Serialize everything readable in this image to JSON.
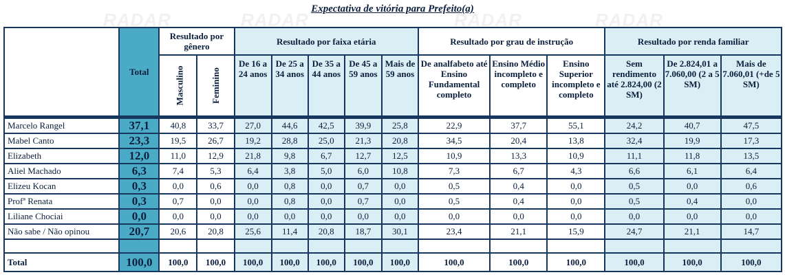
{
  "title": "Expectativa de vitória para Prefeito(a)",
  "watermark": "RADAR",
  "header": {
    "total": "Total",
    "groups": {
      "genero": "Resultado por gênero",
      "faixa": "Resultado por faixa etária",
      "instrucao": "Resultado por grau de instrução",
      "renda": "Resultado por renda familiar"
    },
    "columns": [
      "Masculino",
      "Feminino",
      "De 16 a 24 anos",
      "De 25 a 34 anos",
      "De 35 a 44 anos",
      "De 45 a 59 anos",
      "Mais de 59 anos",
      "De analfabeto até Ensino Fundamental completo",
      "Ensino Médio incompleto e completo",
      "Ensino Superior incompleto e completo",
      "Sem rendimento até 2.824,00 (2 SM)",
      "De 2.824,01 a 7.060,00 (2 a 5 SM)",
      "Mais de 7.060,01 (+de 5 SM)"
    ]
  },
  "rows": [
    {
      "name": "Marcelo Rangel",
      "total": "37,1",
      "values": [
        "40,8",
        "33,7",
        "27,0",
        "44,6",
        "42,5",
        "39,9",
        "25,8",
        "22,9",
        "37,7",
        "55,1",
        "24,2",
        "40,7",
        "47,5"
      ]
    },
    {
      "name": "Mabel Canto",
      "total": "23,3",
      "values": [
        "19,5",
        "26,7",
        "19,2",
        "28,8",
        "25,0",
        "21,3",
        "20,8",
        "34,5",
        "20,4",
        "13,8",
        "32,4",
        "19,9",
        "17,3"
      ]
    },
    {
      "name": "Elizabeth",
      "total": "12,0",
      "values": [
        "11,0",
        "12,9",
        "21,8",
        "9,8",
        "6,7",
        "12,7",
        "12,5",
        "10,9",
        "13,3",
        "10,9",
        "11,1",
        "11,8",
        "13,5"
      ]
    },
    {
      "name": "Aliel Machado",
      "total": "6,3",
      "values": [
        "7,4",
        "5,3",
        "6,4",
        "3,8",
        "5,0",
        "6,0",
        "10,8",
        "7,3",
        "6,7",
        "4,3",
        "6,6",
        "6,1",
        "6,4"
      ]
    },
    {
      "name": "Elizeu Kocan",
      "total": "0,3",
      "values": [
        "0,0",
        "0,6",
        "0,0",
        "0,8",
        "0,0",
        "0,7",
        "0,0",
        "0,5",
        "0,4",
        "0,0",
        "0,5",
        "0,0",
        "0,6"
      ]
    },
    {
      "name": "Profª Renata",
      "total": "0,3",
      "values": [
        "0,7",
        "0,0",
        "0,0",
        "0,8",
        "0,0",
        "0,7",
        "0,0",
        "0,5",
        "0,4",
        "0,0",
        "0,5",
        "0,4",
        "0,0"
      ]
    },
    {
      "name": "Liliane Chociai",
      "total": "0,0",
      "values": [
        "0,0",
        "0,0",
        "0,0",
        "0,0",
        "0,0",
        "0,0",
        "0,0",
        "0,0",
        "0,0",
        "0,0",
        "0,0",
        "0,0",
        "0,0"
      ]
    },
    {
      "name": "Não sabe / Não opinou",
      "total": "20,7",
      "values": [
        "20,6",
        "20,8",
        "25,6",
        "11,4",
        "20,8",
        "18,7",
        "30,1",
        "23,4",
        "21,1",
        "15,9",
        "24,7",
        "21,1",
        "14,7"
      ]
    }
  ],
  "total_row": {
    "name": "Total",
    "total": "100,0",
    "values": [
      "100,0",
      "100,0",
      "100,0",
      "100,0",
      "100,0",
      "100,0",
      "100,0",
      "100,0",
      "100,0",
      "100,0",
      "100,0",
      "100,0",
      "100,0"
    ]
  }
}
